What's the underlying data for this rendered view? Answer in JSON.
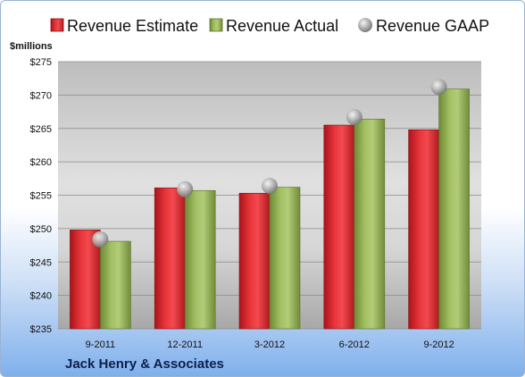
{
  "company": "Jack Henry & Associates",
  "colors": {
    "estimate": "#d9262b",
    "actual": "#8fae52",
    "gaap": "#b8b8b8"
  },
  "chart_data": {
    "type": "bar",
    "ylabel": "$millions",
    "ylim": [
      235,
      275
    ],
    "yticks": [
      "$235",
      "$240",
      "$245",
      "$250",
      "$255",
      "$260",
      "$265",
      "$270",
      "$275"
    ],
    "ytick_values": [
      235,
      240,
      245,
      250,
      255,
      260,
      265,
      270,
      275
    ],
    "categories": [
      "9-2011",
      "12-2011",
      "3-2012",
      "6-2012",
      "9-2012"
    ],
    "grid": true,
    "legend_position": "top",
    "series": [
      {
        "name": "Revenue Estimate",
        "type": "bar",
        "values": [
          249.8,
          256.1,
          255.3,
          265.5,
          264.8
        ]
      },
      {
        "name": "Revenue Actual",
        "type": "bar",
        "values": [
          248.1,
          255.7,
          256.2,
          266.4,
          270.9
        ]
      },
      {
        "name": "Revenue GAAP",
        "type": "scatter",
        "values": [
          248.4,
          255.9,
          256.4,
          266.7,
          271.2
        ]
      }
    ]
  }
}
